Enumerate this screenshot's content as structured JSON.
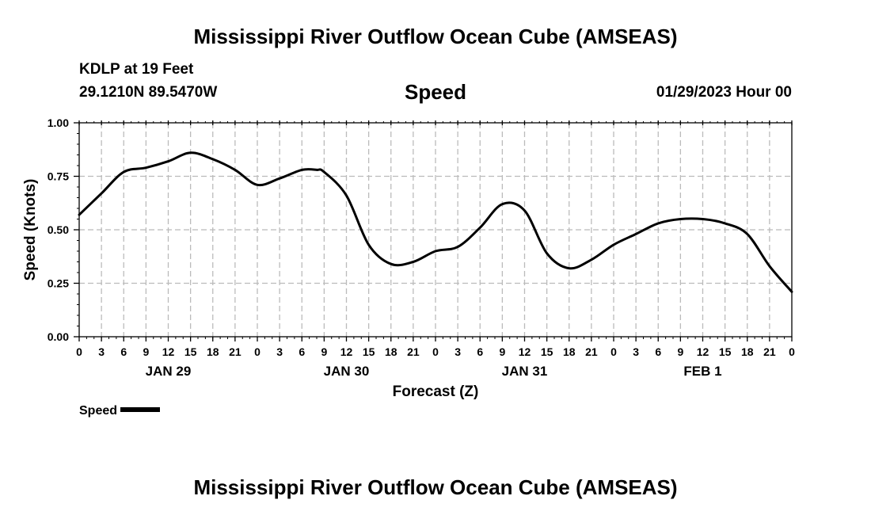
{
  "page": {
    "title": "Mississippi River Outflow Ocean Cube (AMSEAS)",
    "footer_title": "Mississippi River Outflow Ocean Cube (AMSEAS)",
    "station_label": "KDLP at 19 Feet",
    "coordinates": "29.1210N  89.5470W",
    "subtitle": "Speed",
    "datetime": "01/29/2023 Hour 00"
  },
  "legend": {
    "label": "Speed",
    "color": "#000000"
  },
  "chart_data": {
    "type": "line",
    "title": "Speed",
    "xlabel": "Forecast (Z)",
    "ylabel": "Speed (Knots)",
    "xlim": [
      0,
      96
    ],
    "ylim": [
      0,
      1.0
    ],
    "grid": true,
    "legend_position": "bottom-left",
    "y_ticks": [
      "0.00",
      "0.25",
      "0.50",
      "0.75",
      "1.00"
    ],
    "x_hour_labels": [
      "0",
      "3",
      "6",
      "9",
      "12",
      "15",
      "18",
      "21",
      "0",
      "3",
      "6",
      "9",
      "12",
      "15",
      "18",
      "21",
      "0",
      "3",
      "6",
      "9",
      "12",
      "15",
      "18",
      "21",
      "0",
      "3",
      "6",
      "9",
      "12",
      "15",
      "18",
      "21",
      "0"
    ],
    "day_labels": [
      {
        "label": "JAN 29",
        "hour": 12
      },
      {
        "label": "JAN 30",
        "hour": 36
      },
      {
        "label": "JAN 31",
        "hour": 60
      },
      {
        "label": "FEB 1",
        "hour": 84
      }
    ],
    "series": [
      {
        "name": "Speed",
        "color": "#000000",
        "x": [
          0,
          3,
          6,
          9,
          12,
          15,
          18,
          21,
          24,
          27,
          30,
          32,
          33,
          36,
          39,
          42,
          45,
          48,
          51,
          54,
          57,
          60,
          63,
          66,
          69,
          72,
          75,
          78,
          81,
          84,
          87,
          90,
          93,
          96
        ],
        "values": [
          0.57,
          0.67,
          0.77,
          0.79,
          0.82,
          0.86,
          0.83,
          0.78,
          0.71,
          0.74,
          0.78,
          0.78,
          0.77,
          0.66,
          0.43,
          0.34,
          0.35,
          0.4,
          0.42,
          0.51,
          0.62,
          0.59,
          0.39,
          0.32,
          0.36,
          0.43,
          0.48,
          0.53,
          0.55,
          0.55,
          0.53,
          0.48,
          0.33,
          0.21
        ]
      }
    ]
  }
}
